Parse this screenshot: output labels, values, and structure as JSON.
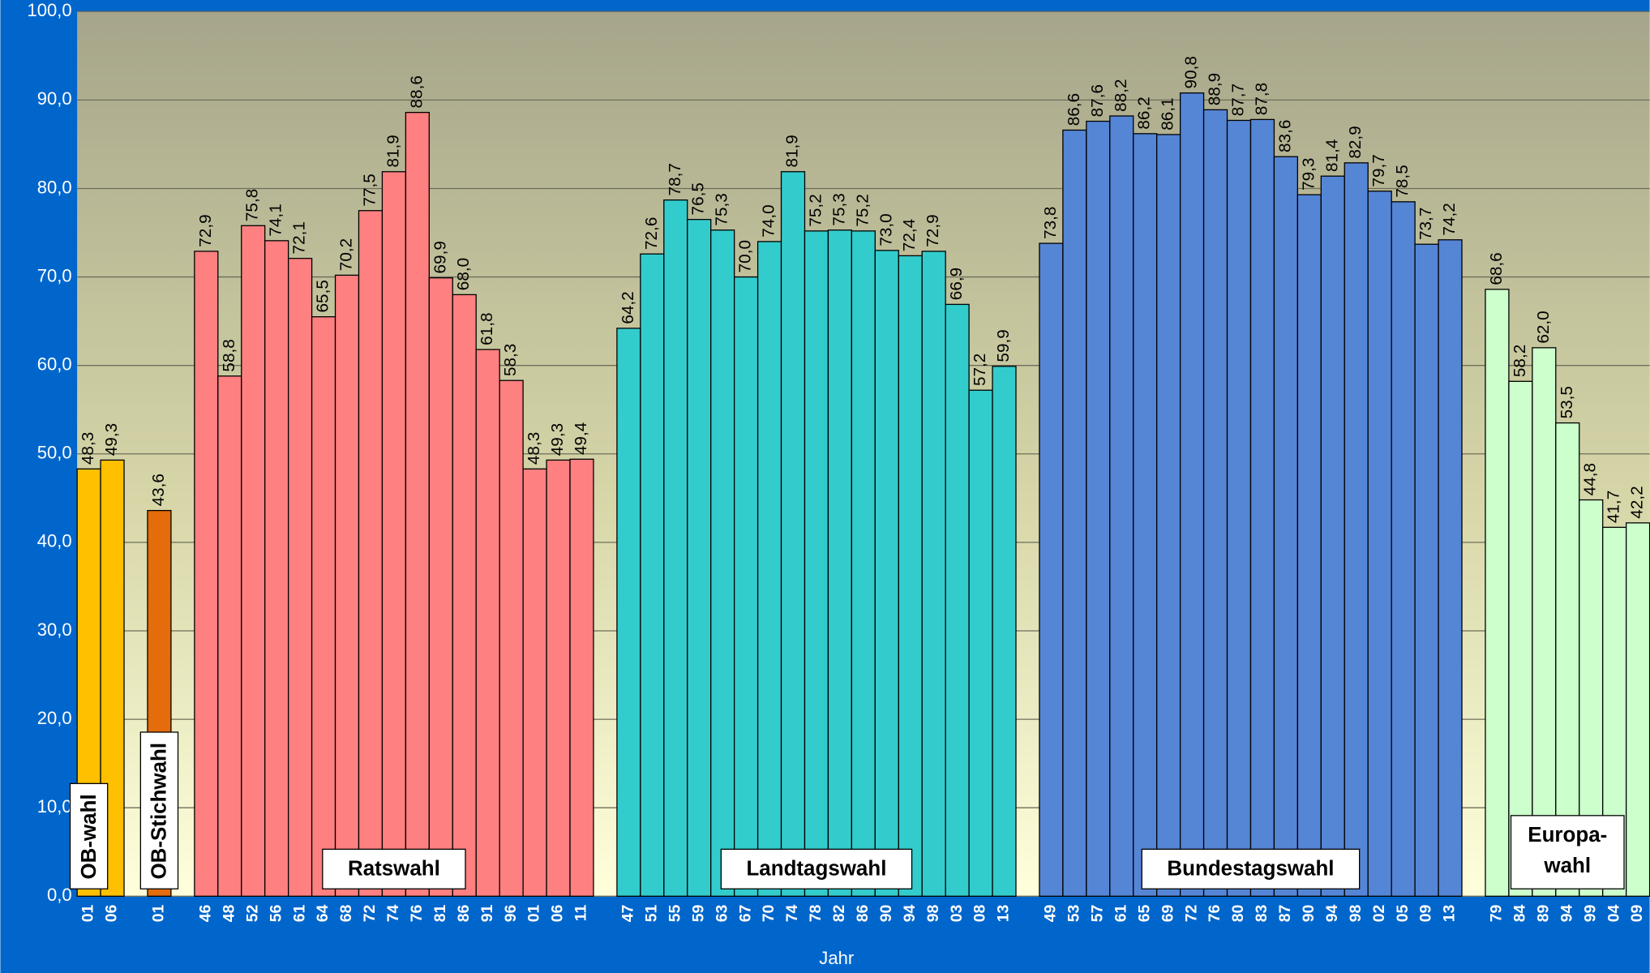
{
  "chart_data": {
    "type": "bar",
    "x_label": "Jahr",
    "ylim": [
      0,
      100
    ],
    "yticks": [
      {
        "value": 0,
        "label": "0,0"
      },
      {
        "value": 10,
        "label": "10,0"
      },
      {
        "value": 20,
        "label": "20,0"
      },
      {
        "value": 30,
        "label": "30,0"
      },
      {
        "value": 40,
        "label": "40,0"
      },
      {
        "value": 50,
        "label": "50,0"
      },
      {
        "value": 60,
        "label": "60,0"
      },
      {
        "value": 70,
        "label": "70,0"
      },
      {
        "value": 80,
        "label": "80,0"
      },
      {
        "value": 90,
        "label": "90,0"
      },
      {
        "value": 100,
        "label": "100,0"
      }
    ],
    "grid": true,
    "groups": [
      {
        "label": "OB-wahl",
        "color": "#ffc000",
        "categories": [
          "01",
          "06"
        ],
        "values": [
          48.3,
          49.3
        ],
        "value_labels": [
          "48,3",
          "49,3"
        ]
      },
      {
        "label": "OB-Stichwahl",
        "color": "#e46c0a",
        "categories": [
          "01"
        ],
        "values": [
          43.6
        ],
        "value_labels": [
          "43,6"
        ]
      },
      {
        "label": "Ratswahl",
        "color": "#ff8080",
        "categories": [
          "46",
          "48",
          "52",
          "56",
          "61",
          "64",
          "68",
          "72",
          "74",
          "76",
          "81",
          "86",
          "91",
          "96",
          "01",
          "06",
          "11"
        ],
        "values": [
          72.9,
          58.8,
          75.8,
          74.1,
          72.1,
          65.5,
          70.2,
          77.5,
          81.9,
          88.6,
          69.9,
          68.0,
          61.8,
          58.3,
          48.3,
          49.3,
          49.4
        ],
        "value_labels": [
          "72,9",
          "58,8",
          "75,8",
          "74,1",
          "72,1",
          "65,5",
          "70,2",
          "77,5",
          "81,9",
          "88,6",
          "69,9",
          "68,0",
          "61,8",
          "58,3",
          "48,3",
          "49,3",
          "49,4"
        ]
      },
      {
        "label": "Landtagswahl",
        "color": "#33cccc",
        "categories": [
          "47",
          "51",
          "55",
          "59",
          "63",
          "67",
          "70",
          "74",
          "78",
          "82",
          "86",
          "90",
          "94",
          "98",
          "03",
          "08",
          "13"
        ],
        "values": [
          64.2,
          72.6,
          78.7,
          76.5,
          75.3,
          70.0,
          74.0,
          81.9,
          75.2,
          75.3,
          75.2,
          73.0,
          72.4,
          72.9,
          66.9,
          57.2,
          59.9
        ],
        "value_labels": [
          "64,2",
          "72,6",
          "78,7",
          "76,5",
          "75,3",
          "70,0",
          "74,0",
          "81,9",
          "75,2",
          "75,3",
          "75,2",
          "73,0",
          "72,4",
          "72,9",
          "66,9",
          "57,2",
          "59,9"
        ]
      },
      {
        "label": "Bundestagswahl",
        "color": "#5585d5",
        "categories": [
          "49",
          "53",
          "57",
          "61",
          "65",
          "69",
          "72",
          "76",
          "80",
          "83",
          "87",
          "90",
          "94",
          "98",
          "02",
          "05",
          "09",
          "13"
        ],
        "values": [
          73.8,
          86.6,
          87.6,
          88.2,
          86.2,
          86.1,
          90.8,
          88.9,
          87.7,
          87.8,
          83.6,
          79.3,
          81.4,
          82.9,
          79.7,
          78.5,
          73.7,
          74.2
        ],
        "value_labels": [
          "73,8",
          "86,6",
          "87,6",
          "88,2",
          "86,2",
          "86,1",
          "90,8",
          "88,9",
          "87,7",
          "87,8",
          "83,6",
          "79,3",
          "81,4",
          "82,9",
          "79,7",
          "78,5",
          "73,7",
          "74,2"
        ]
      },
      {
        "label": [
          "Europa-",
          "wahl"
        ],
        "color": "#ccffcc",
        "categories": [
          "79",
          "84",
          "89",
          "94",
          "99",
          "04",
          "09"
        ],
        "values": [
          68.6,
          58.2,
          62.0,
          53.5,
          44.8,
          41.7,
          42.2
        ],
        "value_labels": [
          "68,6",
          "58,2",
          "62,0",
          "53,5",
          "44,8",
          "41,7",
          "42,2"
        ]
      }
    ]
  }
}
